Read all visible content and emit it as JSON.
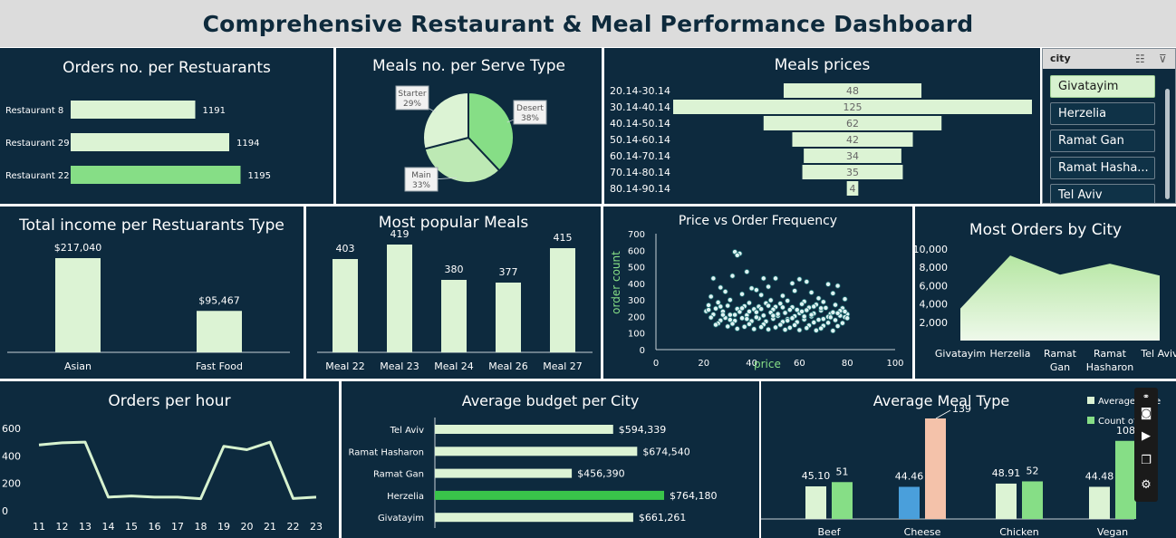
{
  "dashboard": {
    "title": "Comprehensive Restaurant & Meal Performance Dashboard"
  },
  "slicer": {
    "title": "city",
    "items": [
      "Givatayim",
      "Herzelia",
      "Ramat Gan",
      "Ramat Hasha...",
      "Tel Aviv"
    ],
    "selected": "Givatayim"
  },
  "colors": {
    "panel": "#0d2a3e",
    "bar_light": "#dcf3d4",
    "bar_green": "#86de86",
    "bar_bright": "#39c44a",
    "blue": "#4a9fdb",
    "salmon": "#f4c2aa",
    "line": "#d7f2cf"
  },
  "chart_data": [
    {
      "id": "orders_per_restaurant",
      "type": "bar",
      "orientation": "horizontal",
      "title": "Orders no. per Restuarants",
      "categories": [
        "Restaurant 8",
        "Restaurant 29",
        "Restaurant 22"
      ],
      "values": [
        1191,
        1194,
        1195
      ],
      "highlight": "Restaurant 22"
    },
    {
      "id": "meals_per_serve_type",
      "type": "pie",
      "title": "Meals no. per Serve Type",
      "labels": [
        "Desert",
        "Main",
        "Starter"
      ],
      "values": [
        38,
        33,
        29
      ],
      "value_labels": [
        "38%",
        "33%",
        "29%"
      ]
    },
    {
      "id": "meal_prices",
      "type": "bar",
      "orientation": "horizontal-centered",
      "title": "Meals prices",
      "categories": [
        "20.14-30.14",
        "30.14-40.14",
        "40.14-50.14",
        "50.14-60.14",
        "60.14-70.14",
        "70.14-80.14",
        "80.14-90.14"
      ],
      "values": [
        48,
        125,
        62,
        42,
        34,
        35,
        4
      ]
    },
    {
      "id": "income_per_type",
      "type": "bar",
      "title": "Total income per Restuarants Type",
      "categories": [
        "Asian",
        "Fast Food"
      ],
      "values": [
        217040,
        95467
      ],
      "value_labels": [
        "$217,040",
        "$95,467"
      ]
    },
    {
      "id": "popular_meals",
      "type": "bar",
      "title": "Most popular Meals",
      "categories": [
        "Meal 22",
        "Meal 23",
        "Meal 24",
        "Meal 26",
        "Meal 27"
      ],
      "values": [
        403,
        419,
        380,
        377,
        415
      ],
      "ylim": [
        300,
        430
      ]
    },
    {
      "id": "price_vs_frequency",
      "type": "scatter",
      "title": "Price vs Order Frequency",
      "xlabel": "price",
      "ylabel": "order count",
      "xlim": [
        0,
        100
      ],
      "ylim": [
        0,
        700
      ],
      "xticks": [
        0,
        20,
        40,
        60,
        80,
        100
      ],
      "yticks": [
        0,
        100,
        200,
        300,
        400,
        500,
        600,
        700
      ],
      "points": [
        [
          33,
          590
        ],
        [
          35,
          580
        ],
        [
          34,
          570
        ],
        [
          38,
          470
        ],
        [
          32,
          445
        ],
        [
          24,
          430
        ],
        [
          45,
          430
        ],
        [
          50,
          430
        ],
        [
          60,
          425
        ],
        [
          63,
          410
        ],
        [
          57,
          400
        ],
        [
          72,
          395
        ],
        [
          76,
          385
        ],
        [
          47,
          380
        ],
        [
          27,
          375
        ],
        [
          40,
          370
        ],
        [
          42,
          360
        ],
        [
          58,
          355
        ],
        [
          29,
          350
        ],
        [
          65,
          345
        ],
        [
          74,
          340
        ],
        [
          36,
          335
        ],
        [
          44,
          330
        ],
        [
          53,
          325
        ],
        [
          23,
          320
        ],
        [
          68,
          310
        ],
        [
          79,
          305
        ],
        [
          31,
          300
        ],
        [
          48,
          298
        ],
        [
          55,
          295
        ],
        [
          62,
          290
        ],
        [
          70,
          288
        ],
        [
          26,
          285
        ],
        [
          39,
          282
        ],
        [
          46,
          280
        ],
        [
          52,
          278
        ],
        [
          61,
          275
        ],
        [
          67,
          272
        ],
        [
          75,
          270
        ],
        [
          22,
          268
        ],
        [
          30,
          265
        ],
        [
          37,
          262
        ],
        [
          43,
          260
        ],
        [
          50,
          258
        ],
        [
          57,
          256
        ],
        [
          64,
          254
        ],
        [
          71,
          252
        ],
        [
          78,
          250
        ],
        [
          25,
          248
        ],
        [
          34,
          246
        ],
        [
          41,
          244
        ],
        [
          49,
          242
        ],
        [
          56,
          240
        ],
        [
          63,
          238
        ],
        [
          69,
          236
        ],
        [
          77,
          234
        ],
        [
          21,
          232
        ],
        [
          28,
          230
        ],
        [
          35,
          228
        ],
        [
          42,
          226
        ],
        [
          48,
          224
        ],
        [
          54,
          222
        ],
        [
          60,
          220
        ],
        [
          66,
          218
        ],
        [
          73,
          216
        ],
        [
          80,
          214
        ],
        [
          24,
          212
        ],
        [
          31,
          210
        ],
        [
          38,
          208
        ],
        [
          45,
          206
        ],
        [
          51,
          204
        ],
        [
          58,
          202
        ],
        [
          65,
          200
        ],
        [
          72,
          198
        ],
        [
          79,
          196
        ],
        [
          23,
          194
        ],
        [
          29,
          192
        ],
        [
          36,
          190
        ],
        [
          43,
          188
        ],
        [
          49,
          186
        ],
        [
          55,
          184
        ],
        [
          62,
          182
        ],
        [
          68,
          180
        ],
        [
          75,
          178
        ],
        [
          27,
          176
        ],
        [
          33,
          174
        ],
        [
          40,
          172
        ],
        [
          46,
          170
        ],
        [
          53,
          168
        ],
        [
          59,
          166
        ],
        [
          66,
          164
        ],
        [
          72,
          162
        ],
        [
          78,
          160
        ],
        [
          26,
          158
        ],
        [
          32,
          156
        ],
        [
          39,
          154
        ],
        [
          45,
          152
        ],
        [
          52,
          150
        ],
        [
          58,
          148
        ],
        [
          64,
          146
        ],
        [
          70,
          144
        ],
        [
          76,
          142
        ],
        [
          30,
          140
        ],
        [
          37,
          138
        ],
        [
          44,
          136
        ],
        [
          50,
          134
        ],
        [
          56,
          132
        ],
        [
          63,
          130
        ],
        [
          69,
          128
        ],
        [
          34,
          126
        ],
        [
          41,
          124
        ],
        [
          47,
          122
        ],
        [
          54,
          120
        ],
        [
          60,
          118
        ],
        [
          67,
          116
        ],
        [
          74,
          114
        ],
        [
          25,
          150
        ],
        [
          28,
          210
        ],
        [
          31,
          180
        ],
        [
          36,
          250
        ],
        [
          39,
          230
        ],
        [
          42,
          195
        ],
        [
          47,
          265
        ],
        [
          51,
          215
        ],
        [
          55,
          175
        ],
        [
          59,
          240
        ],
        [
          62,
          200
        ],
        [
          66,
          260
        ],
        [
          70,
          185
        ],
        [
          74,
          225
        ],
        [
          77,
          205
        ],
        [
          80,
          190
        ],
        [
          22,
          240
        ],
        [
          27,
          260
        ],
        [
          33,
          210
        ],
        [
          38,
          185
        ],
        [
          44,
          245
        ],
        [
          49,
          205
        ],
        [
          53,
          255
        ],
        [
          57,
          190
        ],
        [
          61,
          230
        ],
        [
          65,
          210
        ],
        [
          69,
          250
        ],
        [
          73,
          195
        ],
        [
          76,
          220
        ],
        [
          79,
          230
        ]
      ]
    },
    {
      "id": "orders_by_city",
      "type": "area",
      "title": "Most Orders by City",
      "categories": [
        "Givatayim",
        "Herzelia",
        "Ramat Gan",
        "Ramat Hasharon",
        "Tel Aviv"
      ],
      "tick_labels": [
        [
          "Givatayim"
        ],
        [
          "Herzelia"
        ],
        [
          "Ramat",
          "Gan"
        ],
        [
          "Ramat",
          "Hasharon"
        ],
        [
          "Tel Aviv"
        ]
      ],
      "values": [
        3500,
        9300,
        7200,
        8400,
        7100
      ],
      "ylim": [
        0,
        10000
      ],
      "yticks": [
        2000,
        4000,
        6000,
        8000,
        10000
      ],
      "ytick_labels": [
        "2,000",
        "4,000",
        "6,000",
        "8,000",
        "10,000"
      ]
    },
    {
      "id": "orders_per_hour",
      "type": "line",
      "title": "Orders per hour",
      "x": [
        11,
        12,
        13,
        14,
        15,
        16,
        17,
        18,
        19,
        20,
        21,
        22,
        23
      ],
      "values": [
        480,
        495,
        500,
        100,
        108,
        100,
        100,
        88,
        470,
        445,
        500,
        90,
        100
      ],
      "ylim": [
        0,
        600
      ],
      "yticks": [
        0,
        200,
        400,
        600
      ]
    },
    {
      "id": "avg_budget_per_city",
      "type": "bar",
      "orientation": "horizontal",
      "title": "Average budget per City",
      "categories": [
        "Tel Aviv",
        "Ramat Hasharon",
        "Ramat Gan",
        "Herzelia",
        "Givatayim"
      ],
      "values": [
        594339,
        674540,
        456390,
        764180,
        661261
      ],
      "value_labels": [
        "$594,339",
        "$674,540",
        "$456,390",
        "$764,180",
        "$661,261"
      ],
      "highlight": "Herzelia"
    },
    {
      "id": "avg_meal_type",
      "type": "bar",
      "title": "Average Meal Type",
      "categories": [
        "Beef",
        "Cheese",
        "Chicken",
        "Vegan"
      ],
      "series": [
        {
          "name": "Average price",
          "values": [
            45.1,
            44.46,
            48.91,
            44.48
          ],
          "labels": [
            "45.10",
            "44.46",
            "48.91",
            "44.48"
          ]
        },
        {
          "name": "Count of",
          "values": [
            51,
            139,
            52,
            108
          ],
          "labels": [
            "51",
            "139",
            "52",
            "108"
          ]
        }
      ],
      "legend_labels": [
        "Average price",
        "Count of"
      ],
      "legend": "top-right"
    }
  ]
}
